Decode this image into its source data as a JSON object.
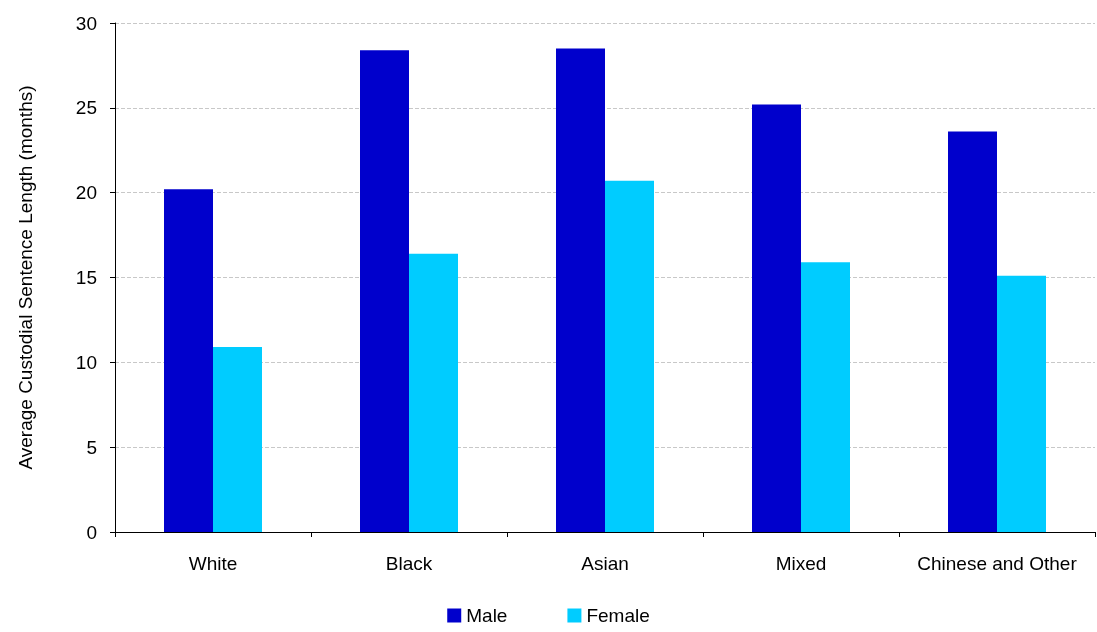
{
  "chart_data": {
    "type": "bar",
    "ylabel": "Average Custodial Sentence Length (months)",
    "categories": [
      "White",
      "Black",
      "Asian",
      "Mixed",
      "Chinese and Other"
    ],
    "series": [
      {
        "name": "Male",
        "color": "#0000cc",
        "values": [
          20.2,
          28.4,
          28.5,
          25.2,
          23.6
        ]
      },
      {
        "name": "Female",
        "color": "#00ccff",
        "values": [
          10.9,
          16.4,
          20.7,
          15.9,
          15.1
        ]
      }
    ],
    "ylim": [
      0,
      30
    ],
    "yticks": [
      0,
      5,
      10,
      15,
      20,
      25,
      30
    ],
    "grid": "y",
    "legend": "bottom"
  }
}
